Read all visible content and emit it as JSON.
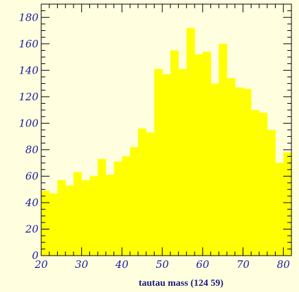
{
  "chart_data": {
    "type": "bar",
    "title": "",
    "xlabel": "tautau mass (124 59)",
    "ylabel": "",
    "xlim": [
      20,
      82
    ],
    "ylim": [
      0,
      190
    ],
    "bin_width": 2,
    "bin_starts": [
      20,
      22,
      24,
      26,
      28,
      30,
      32,
      34,
      36,
      38,
      40,
      42,
      44,
      46,
      48,
      50,
      52,
      54,
      56,
      58,
      60,
      62,
      64,
      66,
      68,
      70,
      72,
      74,
      76,
      78,
      80
    ],
    "values": [
      49,
      47,
      57,
      53,
      63,
      57,
      60,
      73,
      61,
      71,
      75,
      82,
      96,
      93,
      141,
      137,
      155,
      141,
      172,
      152,
      154,
      130,
      160,
      134,
      127,
      126,
      110,
      108,
      95,
      70,
      78
    ],
    "x_ticks": [
      20,
      30,
      40,
      50,
      60,
      70,
      80
    ],
    "y_ticks": [
      0,
      20,
      40,
      60,
      80,
      100,
      120,
      140,
      160,
      180
    ],
    "grid": false,
    "legend": "none",
    "colors": {
      "background": "#ffffe0",
      "bar": "#ffff00",
      "axis": "#000000",
      "text": "#1a1aa0"
    }
  }
}
